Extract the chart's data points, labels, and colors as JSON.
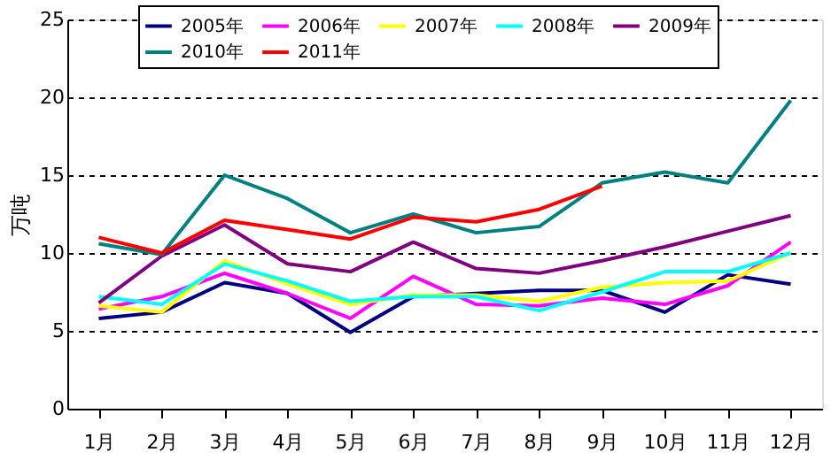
{
  "chart_data": {
    "type": "line",
    "ylabel": "万吨",
    "categories": [
      "1月",
      "2月",
      "3月",
      "4月",
      "5月",
      "6月",
      "7月",
      "8月",
      "9月",
      "10月",
      "11月",
      "12月"
    ],
    "ylim": [
      0,
      25
    ],
    "yticks": [
      0,
      5,
      10,
      15,
      20,
      25
    ],
    "grid": "y",
    "legend": "top",
    "marker": "none",
    "line_style": "solid",
    "series": [
      {
        "name": "2005年",
        "color": "#000080",
        "values": [
          5.8,
          6.2,
          8.1,
          7.4,
          4.9,
          7.2,
          7.4,
          7.6,
          7.6,
          6.2,
          8.6,
          8.0
        ]
      },
      {
        "name": "2006年",
        "color": "#ff00ff",
        "values": [
          6.4,
          7.2,
          8.7,
          7.4,
          5.8,
          8.5,
          6.7,
          6.6,
          7.1,
          6.7,
          7.9,
          10.7
        ]
      },
      {
        "name": "2007年",
        "color": "#ffff00",
        "values": [
          6.6,
          6.2,
          9.5,
          8.0,
          6.7,
          7.3,
          7.3,
          6.9,
          7.8,
          8.1,
          8.2,
          10.0
        ]
      },
      {
        "name": "2008年",
        "color": "#00ffff",
        "values": [
          7.2,
          6.7,
          9.3,
          8.2,
          6.9,
          7.2,
          7.2,
          6.3,
          7.5,
          8.8,
          8.8,
          10.0
        ]
      },
      {
        "name": "2009年",
        "color": "#800080",
        "values": [
          6.8,
          9.8,
          11.8,
          9.3,
          8.8,
          10.7,
          9.0,
          8.7,
          9.5,
          10.4,
          11.4,
          12.4
        ]
      },
      {
        "name": "2010年",
        "color": "#008080",
        "values": [
          10.6,
          9.9,
          15.0,
          13.5,
          11.3,
          12.5,
          11.3,
          11.7,
          14.5,
          15.2,
          14.5,
          19.8
        ]
      },
      {
        "name": "2011年",
        "color": "#ff0000",
        "values": [
          11.0,
          10.0,
          12.1,
          11.5,
          10.9,
          12.3,
          12.0,
          12.8,
          14.3,
          null,
          null,
          null
        ]
      }
    ]
  }
}
